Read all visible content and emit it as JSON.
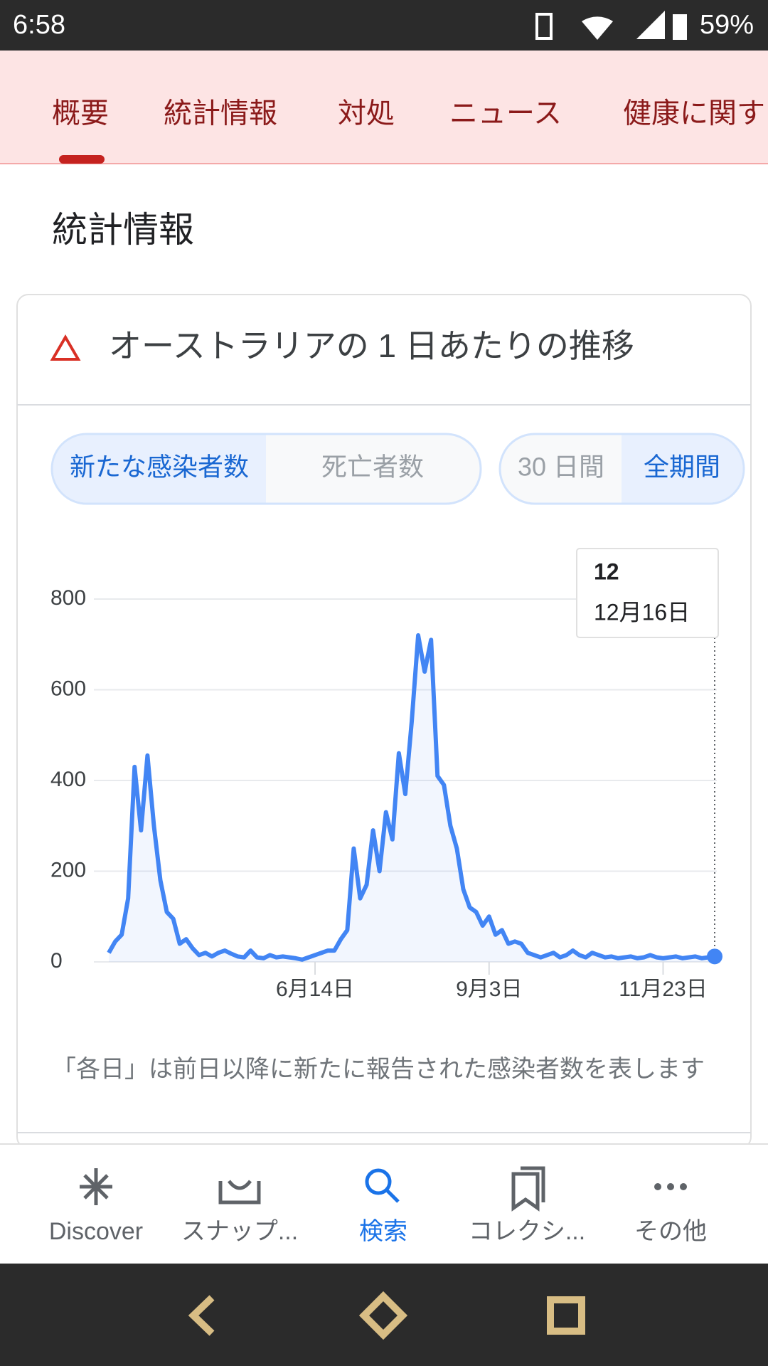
{
  "status_bar": {
    "time": "6:58",
    "battery": "59%"
  },
  "tabs": [
    "概要",
    "統計情報",
    "対処",
    "ニュース",
    "健康に関す"
  ],
  "heading": "統計情報",
  "card": {
    "title": "オーストラリアの 1 日あたりの推移",
    "metric_toggle": [
      "新たな感染者数",
      "死亡者数"
    ],
    "period_toggle": [
      "30 日間",
      "全期間"
    ],
    "note": "「各日」は前日以降に新たに報告された感染者数を表します",
    "tooltip_label": "12月16日"
  },
  "chart_data": {
    "type": "line",
    "ylim": [
      0,
      800
    ],
    "yticks": [
      0,
      200,
      400,
      600,
      800
    ],
    "grid": true,
    "categories": [
      null,
      null,
      null,
      null,
      null,
      null,
      null,
      null,
      null,
      null,
      null,
      null,
      null,
      null,
      null,
      null,
      null,
      null,
      null,
      null,
      null,
      null,
      null,
      null,
      null,
      null,
      null,
      null,
      null,
      null,
      null,
      null,
      "6月14日",
      null,
      null,
      null,
      null,
      null,
      null,
      null,
      null,
      null,
      null,
      null,
      null,
      null,
      null,
      null,
      null,
      null,
      null,
      null,
      null,
      null,
      null,
      null,
      null,
      null,
      null,
      "9月3日",
      null,
      null,
      null,
      null,
      null,
      null,
      null,
      null,
      null,
      null,
      null,
      null,
      null,
      null,
      null,
      null,
      null,
      null,
      null,
      null,
      null,
      null,
      null,
      null,
      null,
      null,
      "11月23日",
      null,
      null,
      null,
      null,
      null,
      null,
      null,
      null
    ],
    "series": [
      {
        "name": "新たな感染者数",
        "color": "#4285f4",
        "values": [
          20,
          45,
          60,
          140,
          430,
          290,
          455,
          300,
          180,
          110,
          95,
          40,
          50,
          30,
          15,
          20,
          12,
          20,
          25,
          18,
          12,
          10,
          25,
          10,
          8,
          15,
          10,
          12,
          10,
          8,
          5,
          10,
          15,
          20,
          25,
          25,
          50,
          70,
          250,
          140,
          170,
          290,
          200,
          330,
          270,
          460,
          370,
          530,
          720,
          640,
          710,
          410,
          390,
          300,
          250,
          160,
          120,
          110,
          80,
          100,
          60,
          70,
          40,
          45,
          40,
          20,
          15,
          10,
          15,
          20,
          10,
          15,
          25,
          15,
          10,
          20,
          15,
          10,
          12,
          8,
          10,
          12,
          8,
          10,
          15,
          10,
          8,
          10,
          12,
          8,
          10,
          12,
          8,
          10,
          12
        ]
      }
    ]
  },
  "bottom_nav": [
    "Discover",
    "スナップ...",
    "検索",
    "コレクシ...",
    "その他"
  ]
}
